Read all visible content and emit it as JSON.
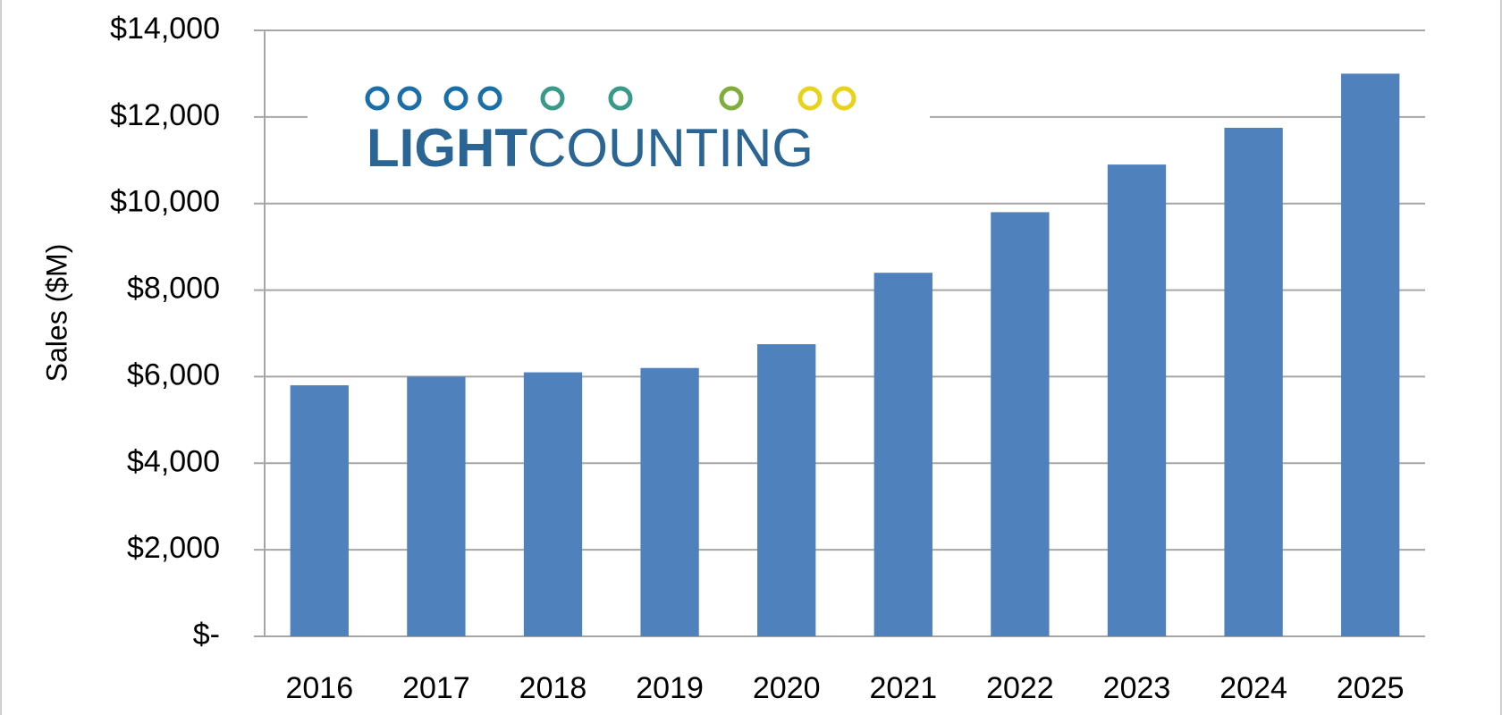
{
  "logo": {
    "text_bold": "LIGHT",
    "text_regular": "COUNTING",
    "text_color": "#2a6593",
    "gradient_colors": [
      "#1b6fa8",
      "#3a9a8a",
      "#7fae3a",
      "#e8d21a"
    ]
  },
  "colors": {
    "bar": "#4f81bd",
    "grid": "#a6a6a6",
    "frame": "#cfcfcf"
  },
  "chart_data": {
    "type": "bar",
    "title": "",
    "xlabel": "",
    "ylabel": "Sales ($M)",
    "ylim": [
      0,
      14000
    ],
    "yticks": [
      0,
      2000,
      4000,
      6000,
      8000,
      10000,
      12000,
      14000
    ],
    "ytick_labels": [
      "$-",
      "$2,000",
      "$4,000",
      "$6,000",
      "$8,000",
      "$10,000",
      "$12,000",
      "$14,000"
    ],
    "categories": [
      "2016",
      "2017",
      "2018",
      "2019",
      "2020",
      "2021",
      "2022",
      "2023",
      "2024",
      "2025"
    ],
    "values": [
      5800,
      6000,
      6100,
      6200,
      6750,
      8400,
      9800,
      10900,
      11750,
      13000
    ],
    "grid": true,
    "legend": "none"
  }
}
